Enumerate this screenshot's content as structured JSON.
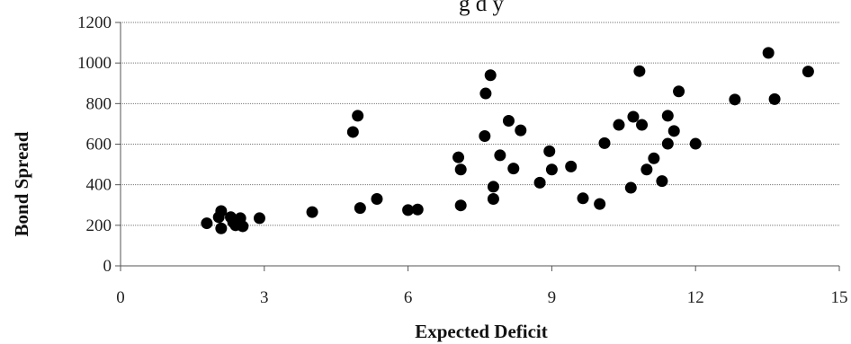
{
  "chart_data": {
    "type": "scatter",
    "title": "g    d          y                    ",
    "xlabel": "Expected Deficit",
    "ylabel": "Bond Spread",
    "xlim": [
      0,
      15
    ],
    "ylim": [
      0,
      1200
    ],
    "xticks": [
      "0",
      "3",
      "6",
      "9",
      "12",
      "15"
    ],
    "yticks": [
      "0",
      "200",
      "400",
      "600",
      "800",
      "1000",
      "1200"
    ],
    "grid": true,
    "legend": "none",
    "marker_color": "#000000",
    "points": [
      {
        "x": 1.8,
        "y": 210
      },
      {
        "x": 2.05,
        "y": 240
      },
      {
        "x": 2.1,
        "y": 270
      },
      {
        "x": 2.1,
        "y": 185
      },
      {
        "x": 2.3,
        "y": 240
      },
      {
        "x": 2.35,
        "y": 215
      },
      {
        "x": 2.4,
        "y": 200
      },
      {
        "x": 2.5,
        "y": 235
      },
      {
        "x": 2.55,
        "y": 195
      },
      {
        "x": 2.9,
        "y": 235
      },
      {
        "x": 4.0,
        "y": 265
      },
      {
        "x": 4.85,
        "y": 660
      },
      {
        "x": 4.95,
        "y": 740
      },
      {
        "x": 5.0,
        "y": 285
      },
      {
        "x": 5.35,
        "y": 330
      },
      {
        "x": 6.0,
        "y": 275
      },
      {
        "x": 6.2,
        "y": 278
      },
      {
        "x": 7.05,
        "y": 535
      },
      {
        "x": 7.1,
        "y": 475
      },
      {
        "x": 7.1,
        "y": 298
      },
      {
        "x": 7.6,
        "y": 640
      },
      {
        "x": 7.62,
        "y": 850
      },
      {
        "x": 7.72,
        "y": 940
      },
      {
        "x": 7.78,
        "y": 390
      },
      {
        "x": 7.78,
        "y": 330
      },
      {
        "x": 7.92,
        "y": 545
      },
      {
        "x": 8.1,
        "y": 715
      },
      {
        "x": 8.2,
        "y": 480
      },
      {
        "x": 8.35,
        "y": 668
      },
      {
        "x": 8.75,
        "y": 410
      },
      {
        "x": 8.95,
        "y": 565
      },
      {
        "x": 9.0,
        "y": 475
      },
      {
        "x": 9.4,
        "y": 490
      },
      {
        "x": 9.65,
        "y": 333
      },
      {
        "x": 10.0,
        "y": 305
      },
      {
        "x": 10.1,
        "y": 605
      },
      {
        "x": 10.4,
        "y": 695
      },
      {
        "x": 10.65,
        "y": 385
      },
      {
        "x": 10.7,
        "y": 735
      },
      {
        "x": 10.83,
        "y": 960
      },
      {
        "x": 10.88,
        "y": 695
      },
      {
        "x": 10.98,
        "y": 475
      },
      {
        "x": 11.13,
        "y": 530
      },
      {
        "x": 11.3,
        "y": 418
      },
      {
        "x": 11.42,
        "y": 740
      },
      {
        "x": 11.42,
        "y": 602
      },
      {
        "x": 11.55,
        "y": 665
      },
      {
        "x": 11.65,
        "y": 860
      },
      {
        "x": 12.0,
        "y": 602
      },
      {
        "x": 12.82,
        "y": 820
      },
      {
        "x": 13.52,
        "y": 1050
      },
      {
        "x": 13.65,
        "y": 822
      },
      {
        "x": 14.35,
        "y": 958
      }
    ]
  }
}
